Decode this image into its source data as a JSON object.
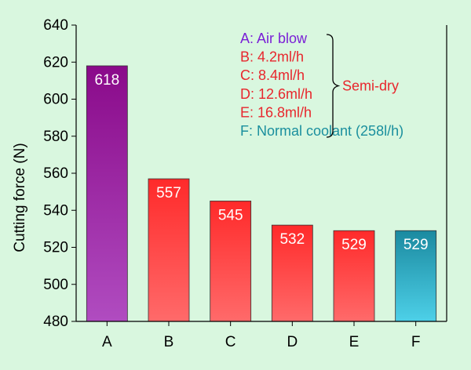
{
  "chart_data": {
    "type": "bar",
    "ylabel": "Cutting force (N)",
    "ylim": [
      480,
      640
    ],
    "yticks": [
      480,
      500,
      520,
      540,
      560,
      580,
      600,
      620,
      640
    ],
    "grid": false,
    "categories": [
      "A",
      "B",
      "C",
      "D",
      "E",
      "F"
    ],
    "values": [
      618,
      557,
      545,
      532,
      529,
      529
    ],
    "data_labels": [
      "618",
      "557",
      "545",
      "532",
      "529",
      "529"
    ],
    "bar_colors": [
      {
        "top": "#8a0a8a",
        "bottom": "#b04cc0"
      },
      {
        "top": "#ff2a2a",
        "bottom": "#ff6a6a"
      },
      {
        "top": "#ff2a2a",
        "bottom": "#ff6a6a"
      },
      {
        "top": "#ff2a2a",
        "bottom": "#ff6a6a"
      },
      {
        "top": "#ff2a2a",
        "bottom": "#ff6a6a"
      },
      {
        "top": "#1b8aa0",
        "bottom": "#4dd0e8"
      }
    ],
    "legend": {
      "placement": "top-right",
      "items": [
        {
          "text": "A: Air blow",
          "color": "#7a1fd6"
        },
        {
          "text": "B: 4.2ml/h",
          "color": "#e8262c"
        },
        {
          "text": "C: 8.4ml/h",
          "color": "#e8262c"
        },
        {
          "text": "D: 12.6ml/h",
          "color": "#e8262c"
        },
        {
          "text": "E: 16.8ml/h",
          "color": "#e8262c"
        },
        {
          "text": "F: Normal coolant (258l/h)",
          "color": "#1a8f9e"
        }
      ],
      "group_label": "Semi-dry",
      "group_color": "#e8262c"
    }
  }
}
